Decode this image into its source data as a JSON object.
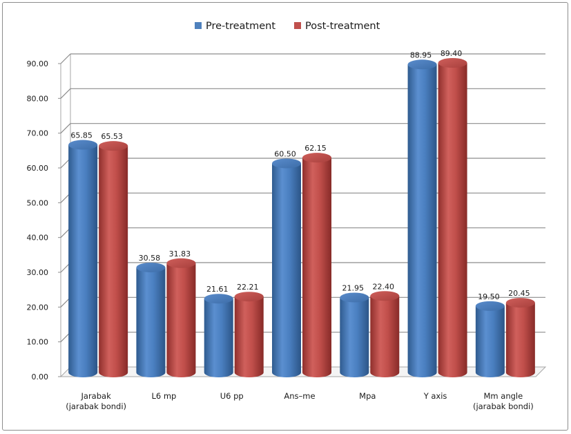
{
  "chart_data": {
    "type": "bar",
    "style": "3d-cylinder",
    "categories": [
      [
        "Jarabak",
        "(jarabak bondi)"
      ],
      [
        "L6 mp"
      ],
      [
        "U6 pp"
      ],
      [
        "Ans–me"
      ],
      [
        "Mpa"
      ],
      [
        "Y axis"
      ],
      [
        "Mm angle",
        "(jarabak bondi)"
      ]
    ],
    "series": [
      {
        "name": "Pre-treatment",
        "color": "#4f81bd",
        "values": [
          65.85,
          30.58,
          21.61,
          60.5,
          21.95,
          88.95,
          19.5
        ],
        "labels": [
          "65.85",
          "30.58",
          "21.61",
          "60.50",
          "21.95",
          "88.95",
          "19.50"
        ]
      },
      {
        "name": "Post-treatment",
        "color": "#c0504d",
        "values": [
          65.53,
          31.83,
          22.21,
          62.15,
          22.4,
          89.4,
          20.45
        ],
        "labels": [
          "65.53",
          "31.83",
          "22.21",
          "62.15",
          "22.40",
          "89.40",
          "20.45"
        ]
      }
    ],
    "yticks": [
      "0.00",
      "10.00",
      "20.00",
      "30.00",
      "40.00",
      "50.00",
      "60.00",
      "70.00",
      "80.00",
      "90.00"
    ],
    "ylim": [
      0,
      90
    ],
    "grid": true,
    "legend": "top-center",
    "title": "",
    "xlabel": "",
    "ylabel": ""
  }
}
